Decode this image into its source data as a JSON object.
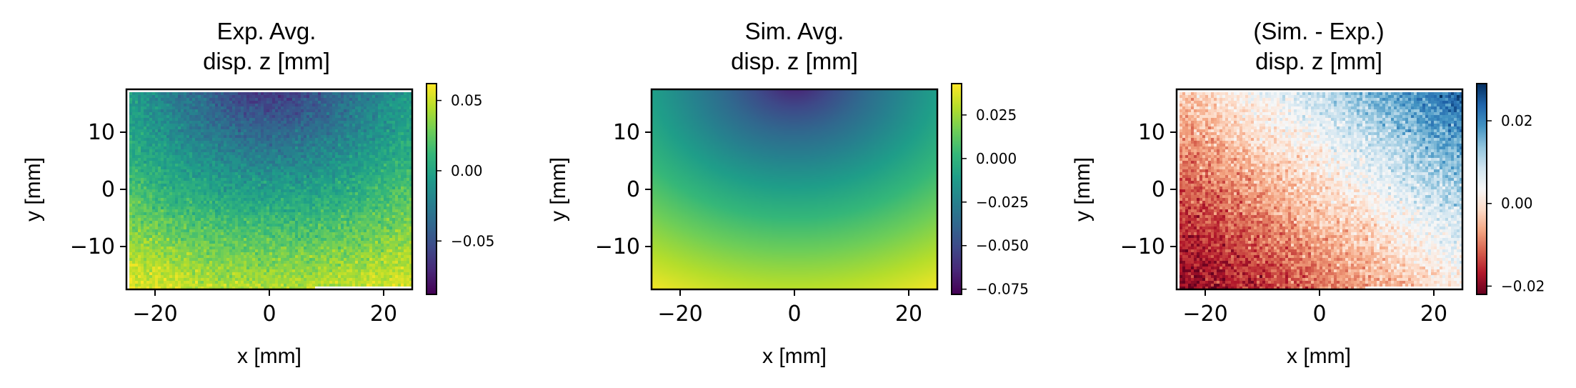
{
  "chart_data": [
    {
      "type": "heatmap",
      "id": "exp",
      "title_lines": [
        "Exp. Avg.",
        "disp. z [mm]"
      ],
      "xlabel": "x [mm]",
      "ylabel": "y [mm]",
      "xlim": [
        -25,
        25
      ],
      "ylim": [
        -17.5,
        17.5
      ],
      "xticks": [
        -20,
        0,
        20
      ],
      "yticks": [
        -10,
        0,
        10
      ],
      "colormap": "viridis",
      "clim": [
        -0.088,
        0.062
      ],
      "cbar_ticks": [
        -0.05,
        0.0,
        0.05
      ],
      "cbar_tick_labels": [
        "−0.05",
        "0.00",
        "0.05"
      ],
      "field": {
        "center_x": 0,
        "top_value": -0.085,
        "bottom_value": 0.058,
        "noise": 0.012
      }
    },
    {
      "type": "heatmap",
      "id": "sim",
      "title_lines": [
        "Sim. Avg.",
        "disp. z [mm]"
      ],
      "xlabel": "x [mm]",
      "ylabel": "y [mm]",
      "xlim": [
        -25,
        25
      ],
      "ylim": [
        -17.5,
        17.5
      ],
      "xticks": [
        -20,
        0,
        20
      ],
      "yticks": [
        -10,
        0,
        10
      ],
      "colormap": "viridis",
      "clim": [
        -0.078,
        0.043
      ],
      "cbar_ticks": [
        -0.075,
        -0.05,
        -0.025,
        0.0,
        0.025
      ],
      "cbar_tick_labels": [
        "−0.075",
        "−0.050",
        "−0.025",
        "0.000",
        "0.025"
      ],
      "field": {
        "center_x": 0,
        "top_value": -0.076,
        "bottom_value": 0.041,
        "noise": 0
      }
    },
    {
      "type": "heatmap",
      "id": "diff",
      "title_lines": [
        "(Sim. - Exp.)",
        "disp. z [mm]"
      ],
      "xlabel": "x [mm]",
      "ylabel": "y [mm]",
      "xlim": [
        -25,
        25
      ],
      "ylim": [
        -17.5,
        17.5
      ],
      "xticks": [
        -20,
        0,
        20
      ],
      "yticks": [
        -10,
        0,
        10
      ],
      "colormap": "RdBu",
      "clim": [
        -0.022,
        0.029
      ],
      "cbar_ticks": [
        -0.02,
        0.0,
        0.02
      ],
      "cbar_tick_labels": [
        "−0.02",
        "0.00",
        "0.02"
      ],
      "field": {
        "top_right_value": 0.025,
        "bottom_left_value": -0.02,
        "noise": 0.005
      }
    }
  ]
}
